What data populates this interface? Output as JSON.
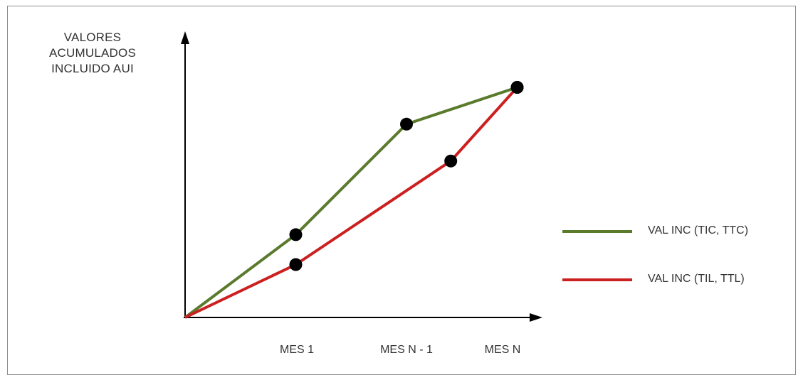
{
  "chart_data": {
    "type": "line",
    "title": "",
    "ylabel_lines": [
      "VALORES",
      "ACUMULADOS",
      "INCLUIDO AUI"
    ],
    "xlabel": "",
    "categories": [
      "MES 1",
      "MES N - 1",
      "MES N"
    ],
    "grid": false,
    "legend_position": "right",
    "series": [
      {
        "name": "VAL INC (TIC, TTC)",
        "color": "#5a7a2c",
        "points": [
          [
            0,
            0
          ],
          [
            1,
            0.36
          ],
          [
            2,
            0.84
          ],
          [
            3,
            1.0
          ]
        ]
      },
      {
        "name": "VAL INC (TIL, TTL)",
        "color": "#cc1f1f",
        "points": [
          [
            0,
            0
          ],
          [
            1,
            0.23
          ],
          [
            2.4,
            0.68
          ],
          [
            3,
            1.0
          ]
        ]
      }
    ],
    "axis_color": "#000000",
    "marker_color": "#000000"
  }
}
